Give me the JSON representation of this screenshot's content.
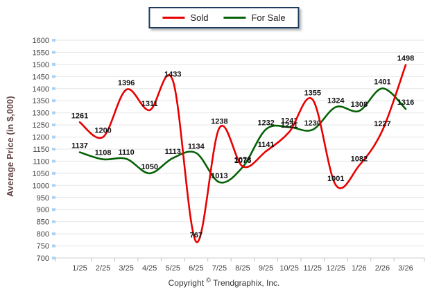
{
  "legend": {
    "items": [
      {
        "label": "Sold",
        "color": "#e80000"
      },
      {
        "label": "For Sale",
        "color": "#046104"
      }
    ]
  },
  "chart_data": {
    "type": "line",
    "x": [
      "1/25",
      "2/25",
      "3/25",
      "4/25",
      "5/25",
      "6/25",
      "7/25",
      "8/25",
      "9/25",
      "10/25",
      "11/25",
      "12/25",
      "1/26",
      "2/26",
      "3/26"
    ],
    "series": [
      {
        "name": "Sold",
        "color": "#e80000",
        "values": [
          1261,
          1200,
          1396,
          1311,
          1433,
          767,
          1238,
          1078,
          1141,
          1221,
          1355,
          1001,
          1082,
          1227,
          1498
        ]
      },
      {
        "name": "For Sale",
        "color": "#046104",
        "values": [
          1137,
          1108,
          1110,
          1050,
          1113,
          1134,
          1013,
          1076,
          1232,
          1241,
          1230,
          1324,
          1308,
          1401,
          1316
        ]
      }
    ],
    "title": "",
    "xlabel": "",
    "ylabel": "Average Price (in $,000)",
    "ylim": [
      700,
      1600
    ],
    "yticks": [
      700,
      750,
      800,
      850,
      900,
      950,
      1000,
      1050,
      1100,
      1150,
      1200,
      1250,
      1300,
      1350,
      1400,
      1450,
      1500,
      1550,
      1600
    ],
    "grid": true,
    "legend_position": "top-center",
    "point_labels": true
  },
  "colors": {
    "grid_line": "#e9e9e9",
    "axis_line": "#d8d8d8",
    "y_tick_marker": "#a8d3f6",
    "x_tick_marker": "#c9c9c9",
    "tick_label": "#404040",
    "point_label": "#111111",
    "ylabel_color": "#5e4242",
    "legend_border": "#1c3b5e"
  },
  "footer": {
    "copyright_prefix": "Copyright",
    "copyright_symbol": "©",
    "copyright_suffix": "Trendgraphix, Inc."
  }
}
